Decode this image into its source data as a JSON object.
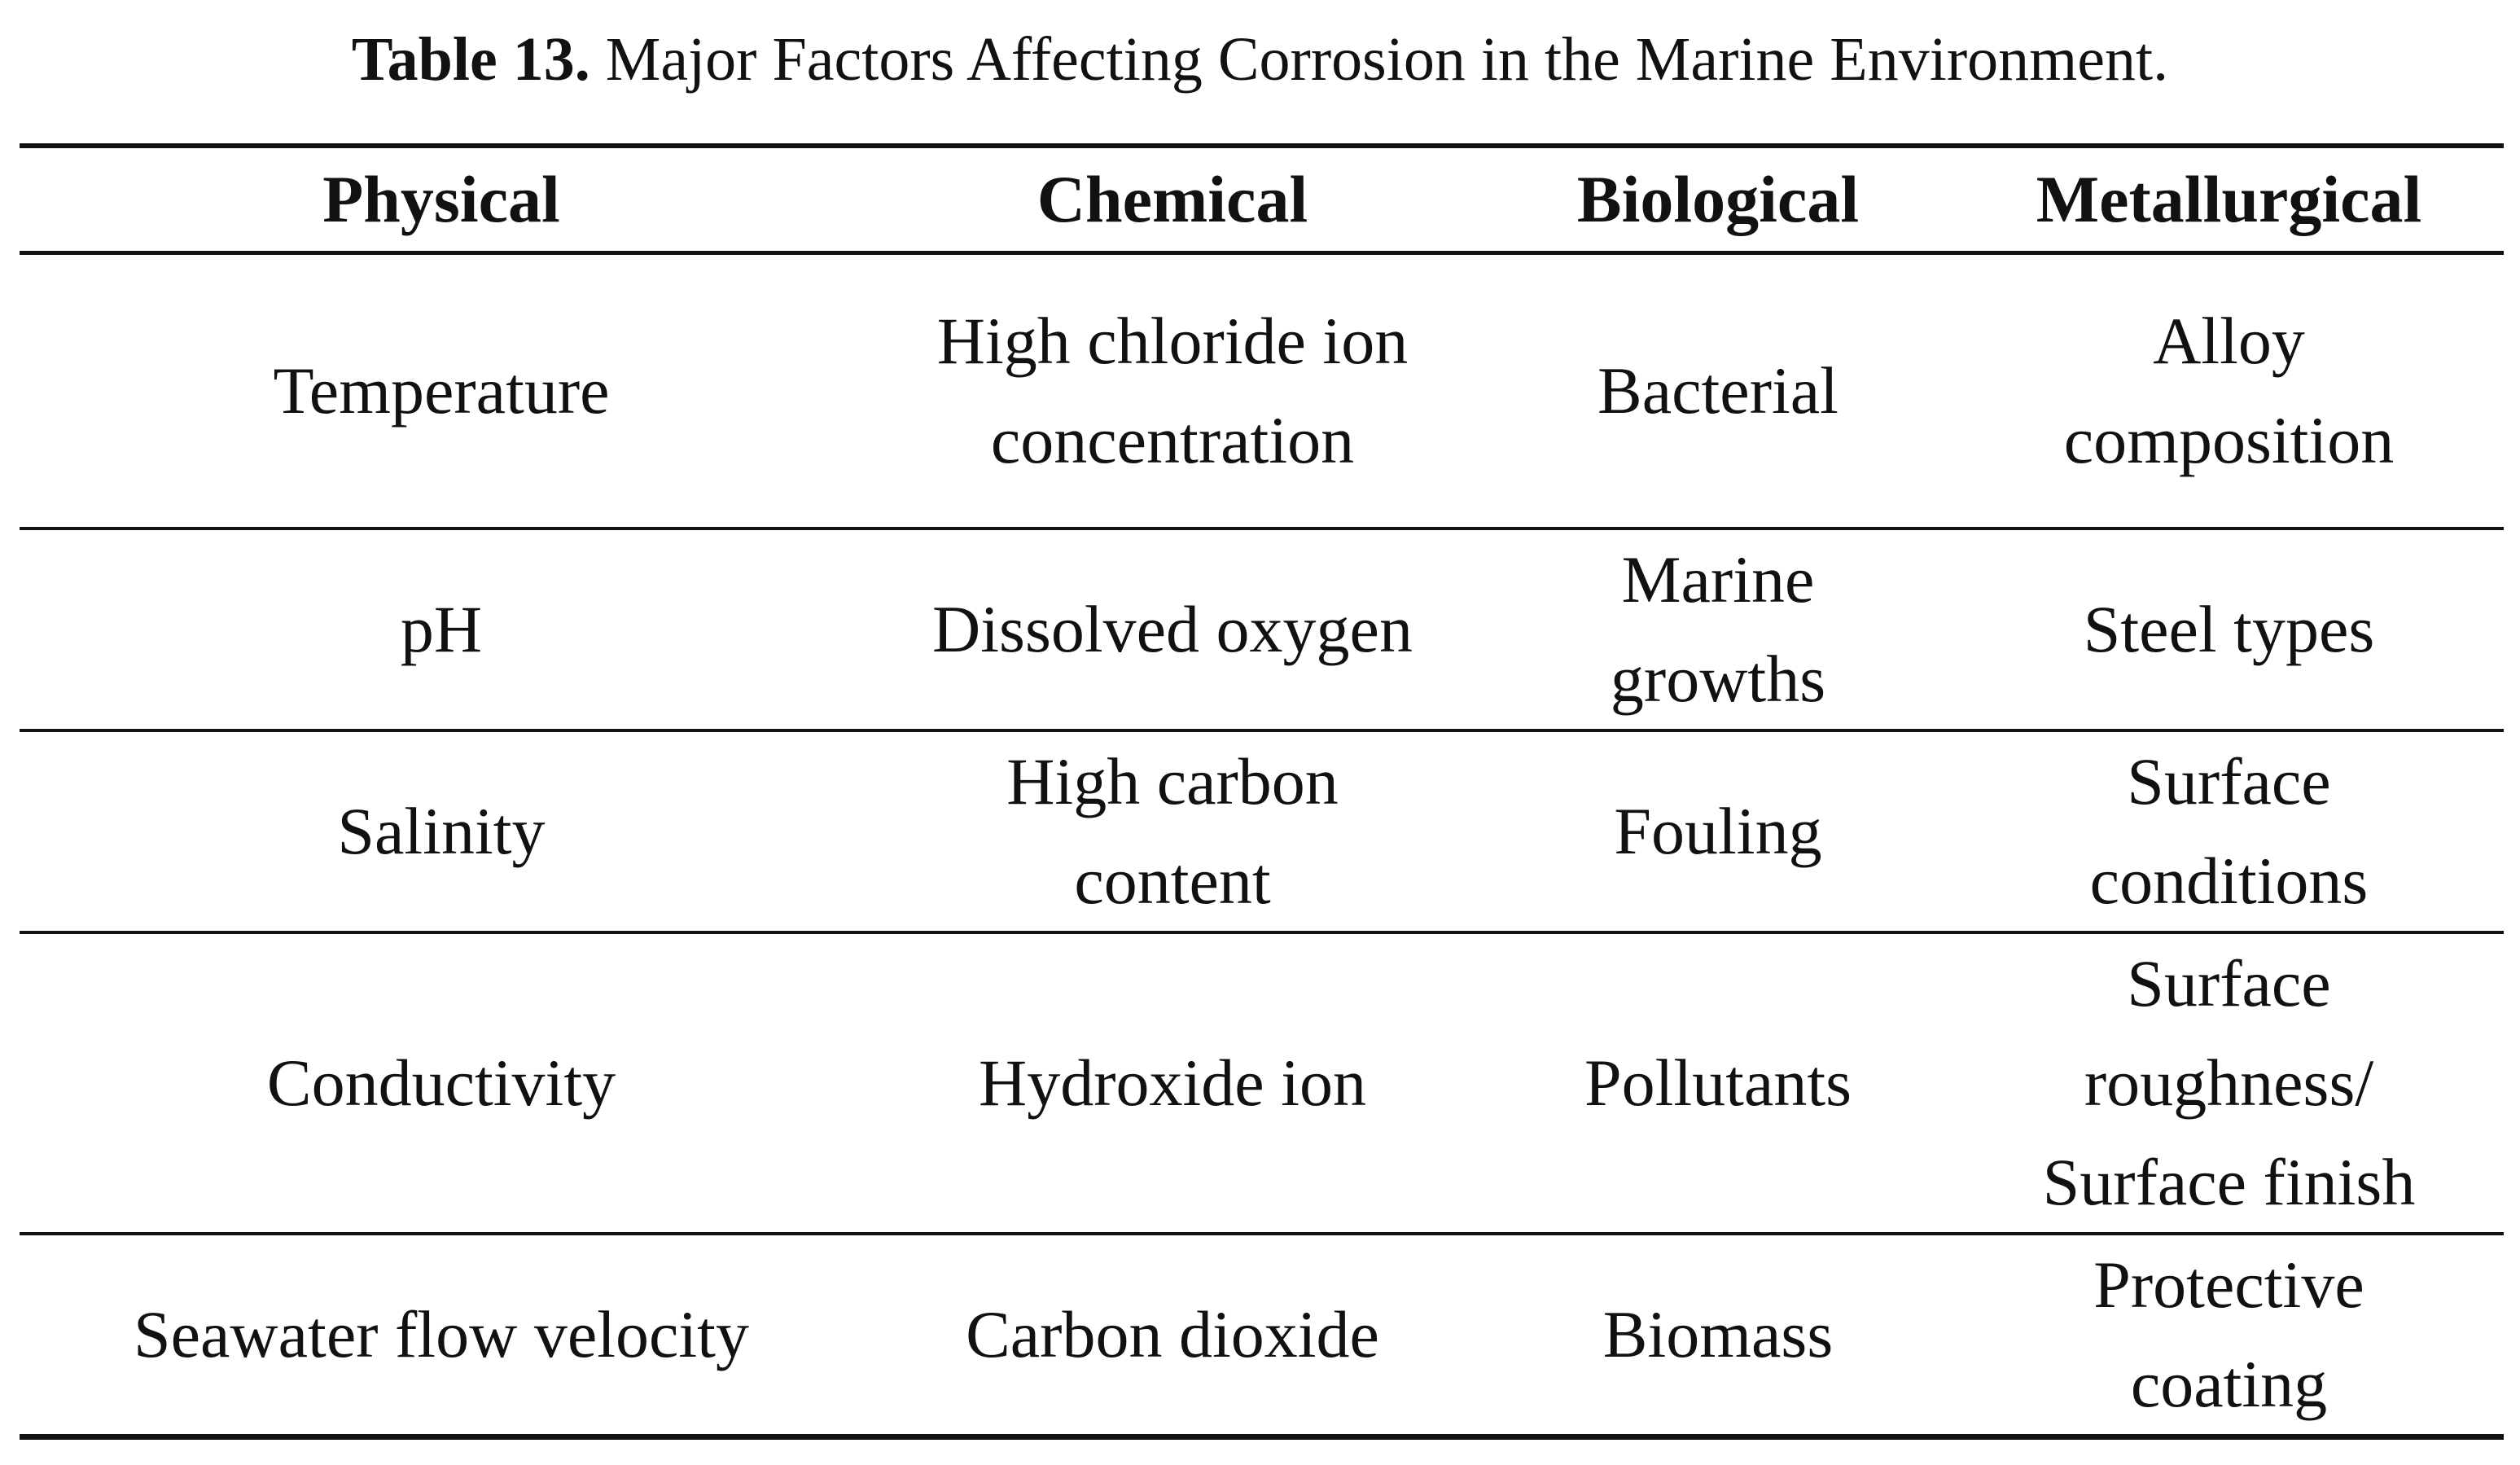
{
  "caption": {
    "label": "Table 13.",
    "text": "Major Factors Affecting Corrosion in the Marine Environment."
  },
  "table": {
    "header": [
      "Physical",
      "Chemical",
      "Biological",
      "Metallurgical"
    ],
    "rows": [
      [
        "Temperature",
        [
          "High chloride ion",
          "concentration"
        ],
        "Bacterial",
        [
          "Alloy",
          "composition"
        ]
      ],
      [
        "pH",
        "Dissolved oxygen",
        [
          "Marine",
          "growths"
        ],
        "Steel types"
      ],
      [
        "Salinity",
        [
          "High carbon",
          "content"
        ],
        "Fouling",
        [
          "Surface",
          "conditions"
        ]
      ],
      [
        "Conductivity",
        "Hydroxide ion",
        "Pollutants",
        [
          "Surface",
          "roughness/",
          "Surface finish"
        ]
      ],
      [
        "Seawater flow velocity",
        "Carbon dioxide",
        "Biomass",
        [
          "Protective",
          "coating"
        ]
      ]
    ]
  }
}
